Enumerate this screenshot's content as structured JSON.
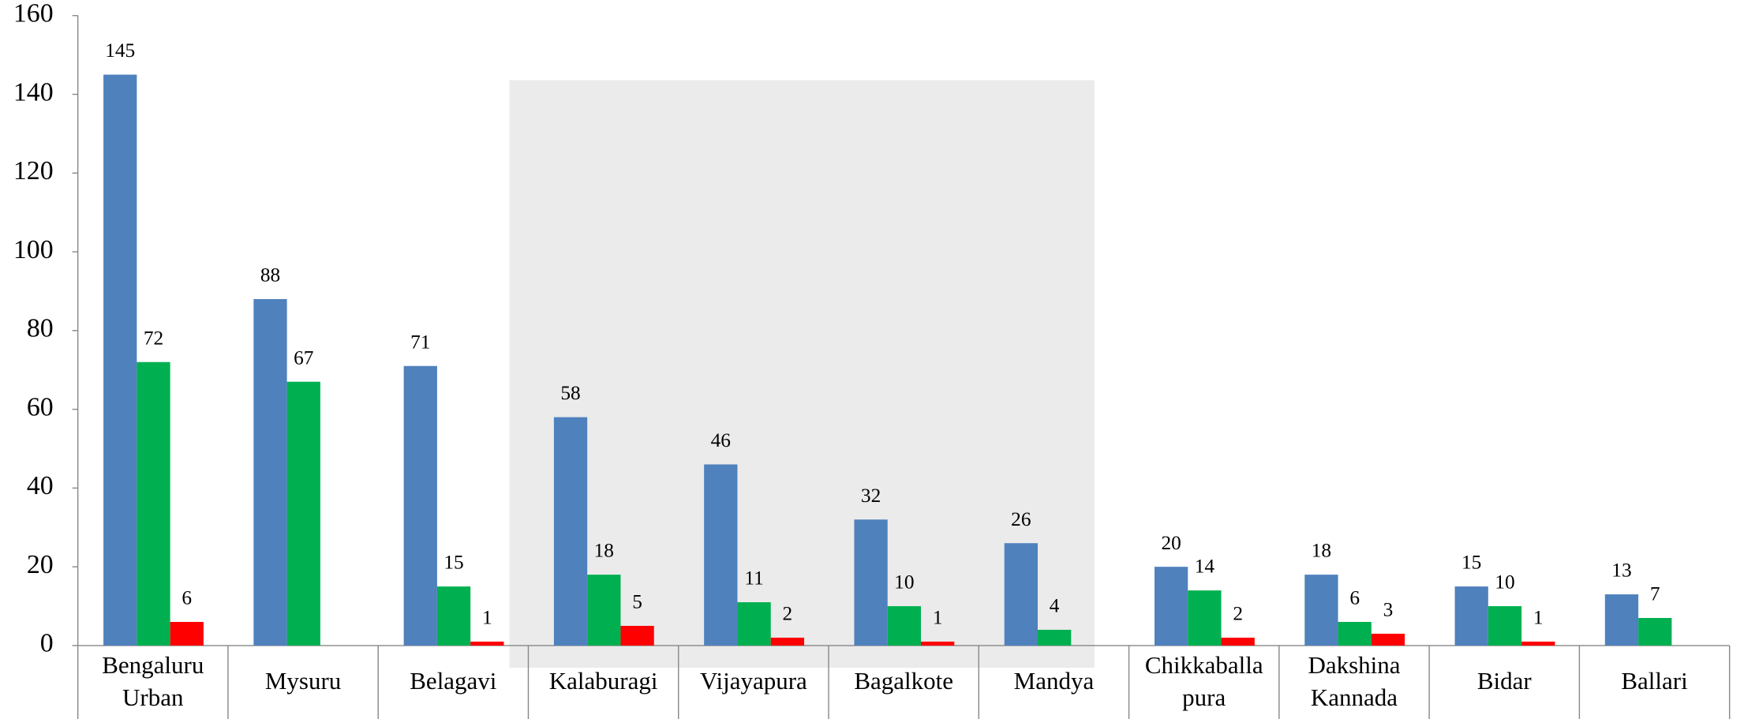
{
  "chart_data": {
    "type": "bar",
    "categories": [
      "Bengaluru Urban",
      "Mysuru",
      "Belagavi",
      "Kalaburagi",
      "Vijayapura",
      "Bagalkote",
      "Mandya",
      "Chikkaballa pura",
      "Dakshina Kannada",
      "Bidar",
      "Ballari"
    ],
    "series": [
      {
        "color": "#4f81bd",
        "values": [
          145,
          88,
          71,
          58,
          46,
          32,
          26,
          20,
          18,
          15,
          13
        ]
      },
      {
        "color": "#00b050",
        "values": [
          72,
          67,
          15,
          18,
          11,
          10,
          4,
          14,
          6,
          10,
          7
        ]
      },
      {
        "color": "#ff0000",
        "values": [
          6,
          null,
          1,
          5,
          2,
          1,
          null,
          2,
          3,
          1,
          null
        ]
      }
    ],
    "ylim": [
      0,
      160
    ],
    "yticks": [
      0,
      20,
      40,
      60,
      80,
      100,
      120,
      140,
      160
    ]
  }
}
